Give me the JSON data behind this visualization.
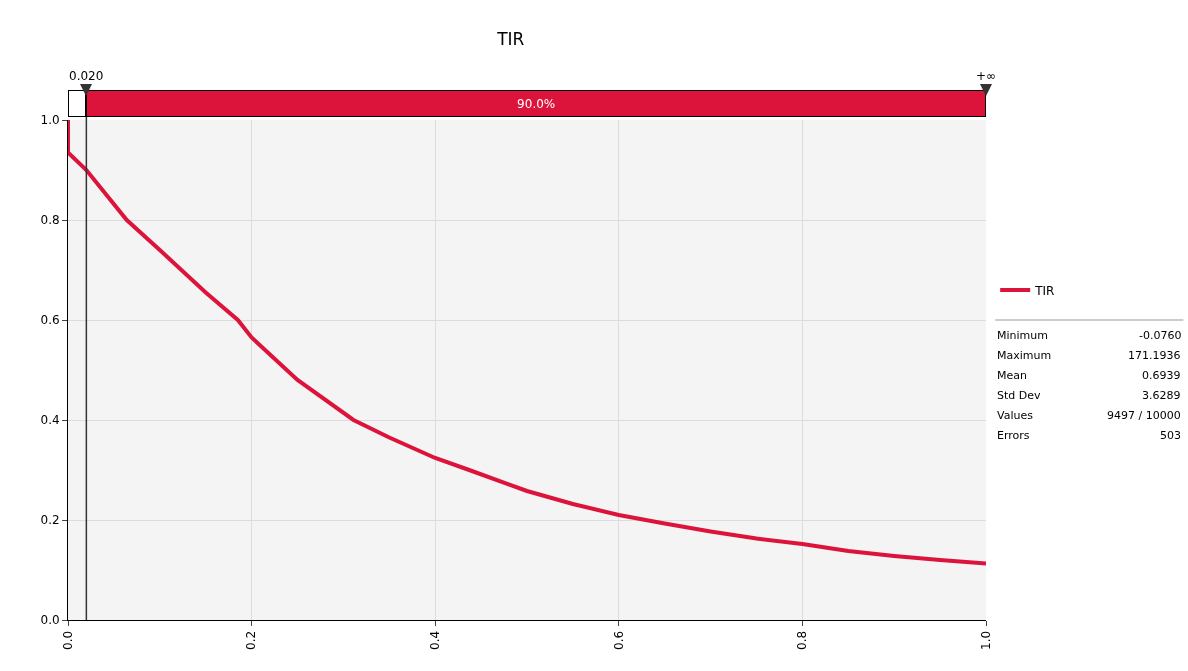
{
  "chart_data": {
    "type": "line",
    "title": "TIR",
    "xlim": [
      0,
      1
    ],
    "ylim": [
      0,
      1
    ],
    "xticks": [
      {
        "value": 0,
        "label": "0.0"
      },
      0.2,
      0.4,
      0.6,
      0.8,
      {
        "value": 1,
        "label": "1.0"
      }
    ],
    "yticks": [
      {
        "value": 0,
        "label": "0.0"
      },
      0.2,
      0.4,
      0.6,
      0.8,
      {
        "value": 1,
        "label": "1.0"
      }
    ],
    "grid": true,
    "legend": "right",
    "marker": "none",
    "line_style": "solid",
    "series": [
      {
        "name": "TIR",
        "color": "#dc143c",
        "x": [
          0,
          0,
          0.02,
          0.064,
          0.1,
          0.15,
          0.185,
          0.2,
          0.25,
          0.311,
          0.35,
          0.4,
          0.437,
          0.5,
          0.55,
          0.6,
          0.65,
          0.7,
          0.75,
          0.8,
          0.85,
          0.9,
          0.95,
          1.0
        ],
        "values": [
          1.0,
          0.935,
          0.9,
          0.8,
          0.74,
          0.655,
          0.6,
          0.565,
          0.48,
          0.4,
          0.365,
          0.324,
          0.3,
          0.258,
          0.232,
          0.21,
          0.193,
          0.177,
          0.163,
          0.152,
          0.138,
          0.128,
          0.12,
          0.113
        ]
      }
    ],
    "ref_lines": [
      {
        "axis": "x",
        "value": 0.02,
        "label": "0.020",
        "color": "#333333"
      }
    ],
    "annotations": [
      "+∞",
      "90.0%",
      "Minimum",
      "-0.0760",
      "Maximum",
      "171.1936",
      "Mean",
      "0.6939",
      "Std Dev",
      "3.6289",
      "Values",
      "9497 / 10000",
      "Errors",
      "503"
    ]
  }
}
